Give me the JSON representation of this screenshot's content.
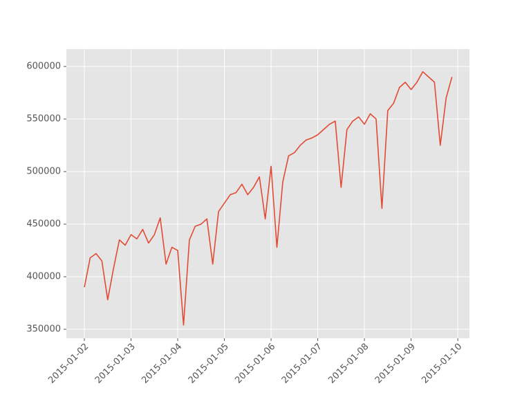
{
  "chart_data": {
    "type": "line",
    "x": [
      "2015-01-02 00:00",
      "2015-01-02 03:00",
      "2015-01-02 06:00",
      "2015-01-02 09:00",
      "2015-01-02 12:00",
      "2015-01-02 15:00",
      "2015-01-02 18:00",
      "2015-01-02 21:00",
      "2015-01-03 00:00",
      "2015-01-03 03:00",
      "2015-01-03 06:00",
      "2015-01-03 09:00",
      "2015-01-03 12:00",
      "2015-01-03 15:00",
      "2015-01-03 18:00",
      "2015-01-03 21:00",
      "2015-01-04 00:00",
      "2015-01-04 03:00",
      "2015-01-04 06:00",
      "2015-01-04 09:00",
      "2015-01-04 12:00",
      "2015-01-04 15:00",
      "2015-01-04 18:00",
      "2015-01-04 21:00",
      "2015-01-05 00:00",
      "2015-01-05 03:00",
      "2015-01-05 06:00",
      "2015-01-05 09:00",
      "2015-01-05 12:00",
      "2015-01-05 15:00",
      "2015-01-05 18:00",
      "2015-01-05 21:00",
      "2015-01-06 00:00",
      "2015-01-06 03:00",
      "2015-01-06 06:00",
      "2015-01-06 09:00",
      "2015-01-06 12:00",
      "2015-01-06 15:00",
      "2015-01-06 18:00",
      "2015-01-06 21:00",
      "2015-01-07 00:00",
      "2015-01-07 03:00",
      "2015-01-07 06:00",
      "2015-01-07 09:00",
      "2015-01-07 12:00",
      "2015-01-07 15:00",
      "2015-01-07 18:00",
      "2015-01-07 21:00",
      "2015-01-08 00:00",
      "2015-01-08 03:00",
      "2015-01-08 06:00",
      "2015-01-08 09:00",
      "2015-01-08 12:00",
      "2015-01-08 15:00",
      "2015-01-08 18:00",
      "2015-01-08 21:00",
      "2015-01-09 00:00",
      "2015-01-09 03:00",
      "2015-01-09 06:00",
      "2015-01-09 09:00",
      "2015-01-09 12:00",
      "2015-01-09 15:00",
      "2015-01-09 18:00",
      "2015-01-09 21:00"
    ],
    "values": [
      390000,
      418000,
      422000,
      415000,
      378000,
      408000,
      435000,
      430000,
      440000,
      436000,
      445000,
      432000,
      440000,
      456000,
      412000,
      428000,
      425000,
      354000,
      435000,
      448000,
      450000,
      455000,
      412000,
      462000,
      470000,
      478000,
      480000,
      488000,
      478000,
      485000,
      495000,
      455000,
      505000,
      428000,
      490000,
      515000,
      518000,
      525000,
      530000,
      532000,
      535000,
      540000,
      545000,
      548000,
      485000,
      540000,
      548000,
      552000,
      545000,
      555000,
      550000,
      465000,
      558000,
      565000,
      580000,
      585000,
      578000,
      585000,
      595000,
      590000,
      585000,
      525000,
      570000,
      590000
    ],
    "color": "#e24a33",
    "xlim": [
      "2015-01-01 14:45",
      "2015-01-10 06:00"
    ],
    "xticks": [
      "2015-01-02",
      "2015-01-03",
      "2015-01-04",
      "2015-01-05",
      "2015-01-06",
      "2015-01-07",
      "2015-01-08",
      "2015-01-09",
      "2015-01-10"
    ],
    "ylim": [
      341500,
      616500
    ],
    "yticks": [
      350000,
      400000,
      450000,
      500000,
      550000,
      600000
    ],
    "grid": true
  }
}
